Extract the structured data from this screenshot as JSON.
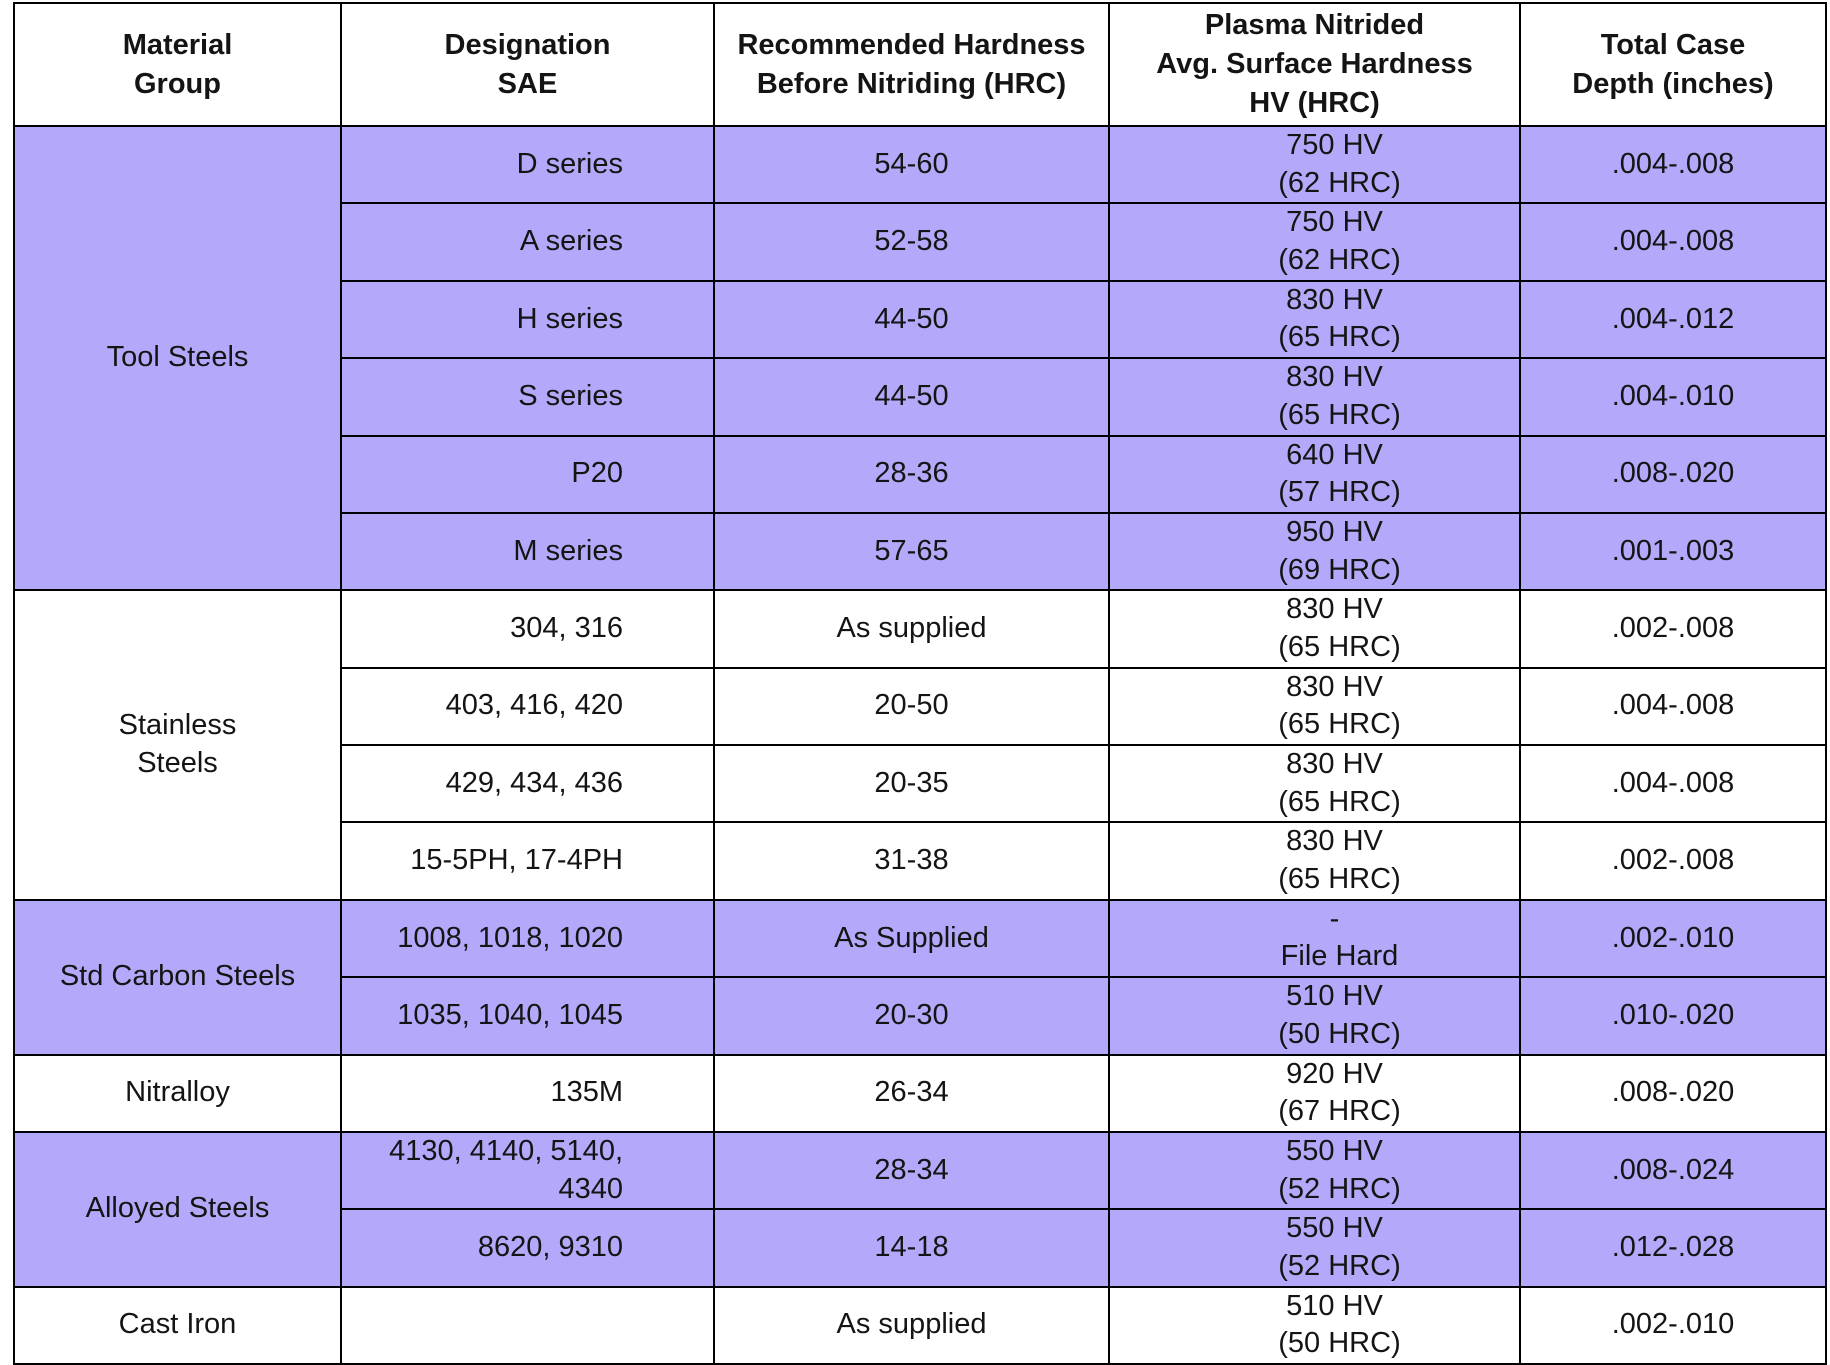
{
  "headers": {
    "material_group": "Material\nGroup",
    "designation": "Designation\nSAE",
    "recommended": "Recommended Hardness\nBefore Nitriding (HRC)",
    "plasma": "Plasma Nitrided\nAvg. Surface Hardness\nHV (HRC)",
    "case_depth": "Total Case\nDepth (inches)"
  },
  "groups": [
    {
      "name": "Tool Steels",
      "rows": [
        {
          "designation": "D series",
          "recommended": "54-60",
          "hv": "750 HV",
          "hrc": "(62 HRC)",
          "case": ".004-.008"
        },
        {
          "designation": "A series",
          "recommended": "52-58",
          "hv": "750 HV",
          "hrc": "(62 HRC)",
          "case": ".004-.008"
        },
        {
          "designation": "H series",
          "recommended": "44-50",
          "hv": "830 HV",
          "hrc": "(65 HRC)",
          "case": ".004-.012"
        },
        {
          "designation": "S series",
          "recommended": "44-50",
          "hv": "830 HV",
          "hrc": "(65 HRC)",
          "case": ".004-.010"
        },
        {
          "designation": "P20",
          "recommended": "28-36",
          "hv": "640 HV",
          "hrc": "(57 HRC)",
          "case": ".008-.020"
        },
        {
          "designation": "M series",
          "recommended": "57-65",
          "hv": "950 HV",
          "hrc": "(69 HRC)",
          "case": ".001-.003"
        }
      ]
    },
    {
      "name": "Stainless\nSteels",
      "rows": [
        {
          "designation": "304, 316",
          "recommended": "As supplied",
          "hv": "830 HV",
          "hrc": "(65 HRC)",
          "case": ".002-.008"
        },
        {
          "designation": "403, 416, 420",
          "recommended": "20-50",
          "hv": "830 HV",
          "hrc": "(65 HRC)",
          "case": ".004-.008"
        },
        {
          "designation": "429, 434, 436",
          "recommended": "20-35",
          "hv": "830 HV",
          "hrc": "(65 HRC)",
          "case": ".004-.008"
        },
        {
          "designation": "15-5PH, 17-4PH",
          "recommended": "31-38",
          "hv": "830 HV",
          "hrc": "(65 HRC)",
          "case": ".002-.008"
        }
      ]
    },
    {
      "name": "Std Carbon Steels",
      "rows": [
        {
          "designation": "1008, 1018, 1020",
          "recommended": "As Supplied",
          "hv": "-",
          "hrc": "File Hard",
          "case": ".002-.010"
        },
        {
          "designation": "1035, 1040, 1045",
          "recommended": "20-30",
          "hv": "510 HV",
          "hrc": "(50 HRC)",
          "case": ".010-.020"
        }
      ]
    },
    {
      "name": "Nitralloy",
      "rows": [
        {
          "designation": "135M",
          "recommended": "26-34",
          "hv": "920 HV",
          "hrc": "(67 HRC)",
          "case": ".008-.020"
        }
      ]
    },
    {
      "name": "Alloyed Steels",
      "rows": [
        {
          "designation": "4130, 4140, 5140,\n4340",
          "recommended": "28-34",
          "hv": "550 HV",
          "hrc": "(52 HRC)",
          "case": ".008-.024"
        },
        {
          "designation": "8620, 9310",
          "recommended": "14-18",
          "hv": "550 HV",
          "hrc": "(52 HRC)",
          "case": ".012-.028"
        }
      ]
    },
    {
      "name": "Cast Iron",
      "rows": [
        {
          "designation": "",
          "recommended": "As supplied",
          "hv": "510 HV",
          "hrc": "(50 HRC)",
          "case": ".002-.010"
        }
      ]
    }
  ],
  "colors": {
    "shade": "#b3a9fa",
    "plain": "#ffffff",
    "border": "#000000"
  }
}
